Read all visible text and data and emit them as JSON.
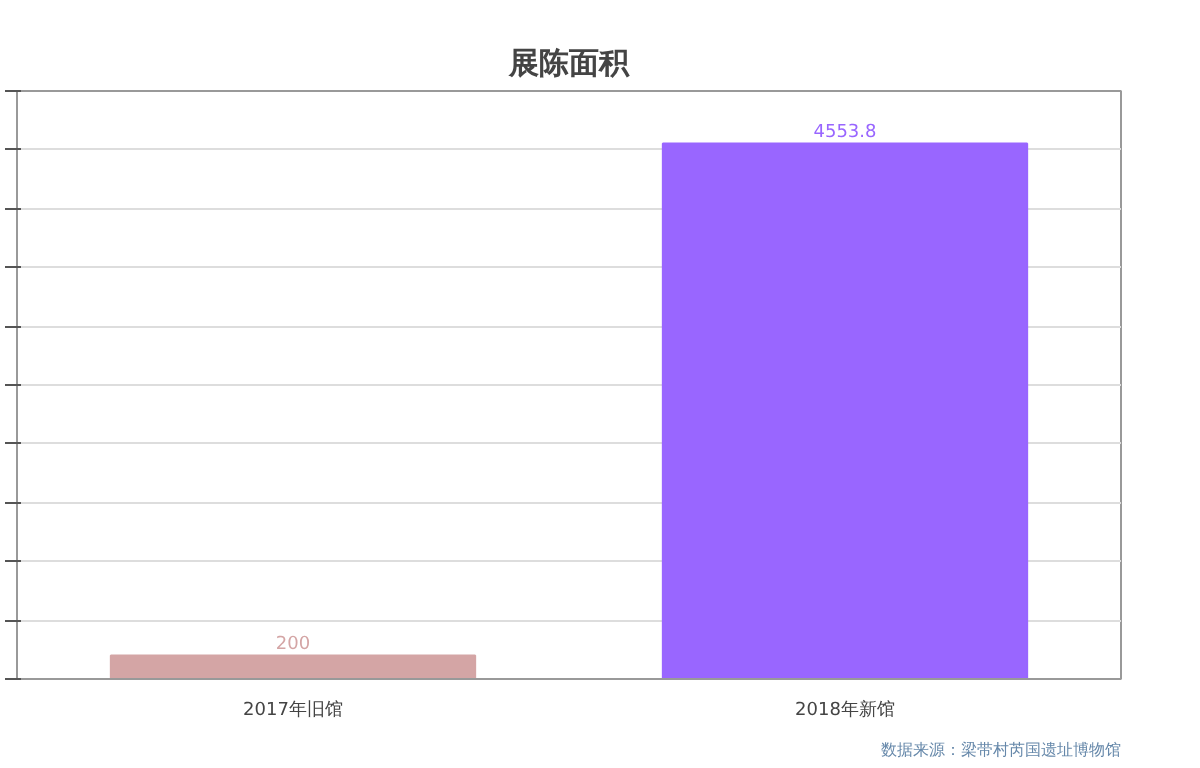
{
  "chart_data": {
    "type": "bar",
    "title": "展陈面积",
    "categories": [
      "2017年旧馆",
      "2018年新馆"
    ],
    "values": [
      200,
      4553.8
    ],
    "colors": [
      "#d4a5a5",
      "#9966ff"
    ],
    "data_labels": true,
    "ylim": [
      0,
      5000
    ],
    "yticks": [
      {
        "value": 0,
        "label": null
      },
      {
        "value": 500,
        "label": null
      },
      {
        "value": 1000,
        "label": null
      },
      {
        "value": 1500,
        "label": null
      },
      {
        "value": 2000,
        "label": null
      },
      {
        "value": 2500,
        "label": null
      },
      {
        "value": 3000,
        "label": null
      },
      {
        "value": 3500,
        "label": null
      },
      {
        "value": 4000,
        "label": null
      },
      {
        "value": 4500,
        "label": null
      },
      {
        "value": 5000,
        "label": null
      }
    ],
    "grid": "y",
    "annotations": [
      "数据来源：梁带村芮国遗址博物馆"
    ]
  }
}
